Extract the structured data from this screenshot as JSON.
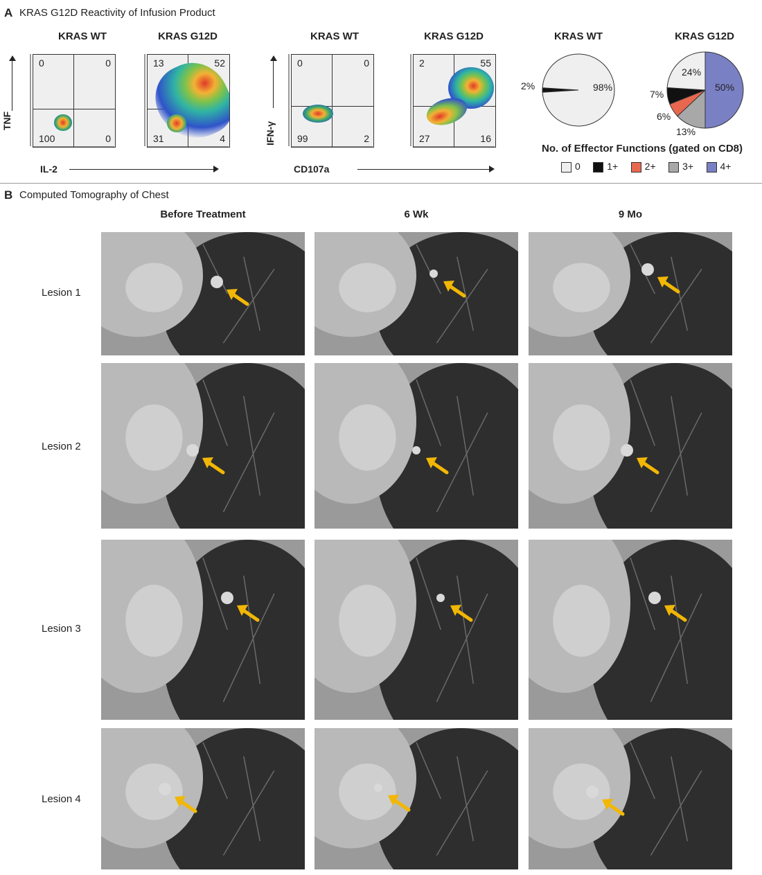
{
  "panelA": {
    "letter": "A",
    "title": "KRAS G12D Reactivity of Infusion Product",
    "plots": [
      {
        "header": "KRAS WT",
        "q": [
          "0",
          "0",
          "100",
          "0"
        ]
      },
      {
        "header": "KRAS G12D",
        "q": [
          "13",
          "52",
          "31",
          "4"
        ]
      },
      {
        "header": "KRAS WT",
        "q": [
          "0",
          "0",
          "99",
          "2"
        ]
      },
      {
        "header": "KRAS G12D",
        "q": [
          "2",
          "55",
          "27",
          "16"
        ]
      }
    ],
    "axes": {
      "tnf": "TNF",
      "il2": "IL-2",
      "ifng": "IFN-γ",
      "cd107a": "CD107a"
    },
    "pies": [
      {
        "header": "KRAS WT",
        "labels": [
          "2%",
          "98%"
        ]
      },
      {
        "header": "KRAS G12D",
        "labels": [
          "24%",
          "7%",
          "6%",
          "13%",
          "50%"
        ]
      }
    ],
    "legend": {
      "title": "No. of Effector Functions (gated on CD8)",
      "items": [
        "0",
        "1+",
        "2+",
        "3+",
        "4+"
      ]
    }
  },
  "chart_data": [
    {
      "type": "pie",
      "title": "KRAS WT",
      "categories": [
        "0",
        "1+"
      ],
      "values": [
        98,
        2
      ]
    },
    {
      "type": "pie",
      "title": "KRAS G12D",
      "categories": [
        "0",
        "1+",
        "2+",
        "3+",
        "4+"
      ],
      "values": [
        24,
        7,
        6,
        13,
        50
      ]
    }
  ],
  "colors": {
    "c0": "#efefef",
    "c1": "#111111",
    "c2": "#e8684f",
    "c3": "#a8a8a8",
    "c4": "#7a80c4",
    "arrow": "#f2b705"
  },
  "panelB": {
    "letter": "B",
    "title": "Computed Tomography of Chest",
    "columns": [
      "Before Treatment",
      "6 Wk",
      "9 Mo"
    ],
    "rows": [
      "Lesion 1",
      "Lesion 2",
      "Lesion 3",
      "Lesion 4"
    ]
  }
}
